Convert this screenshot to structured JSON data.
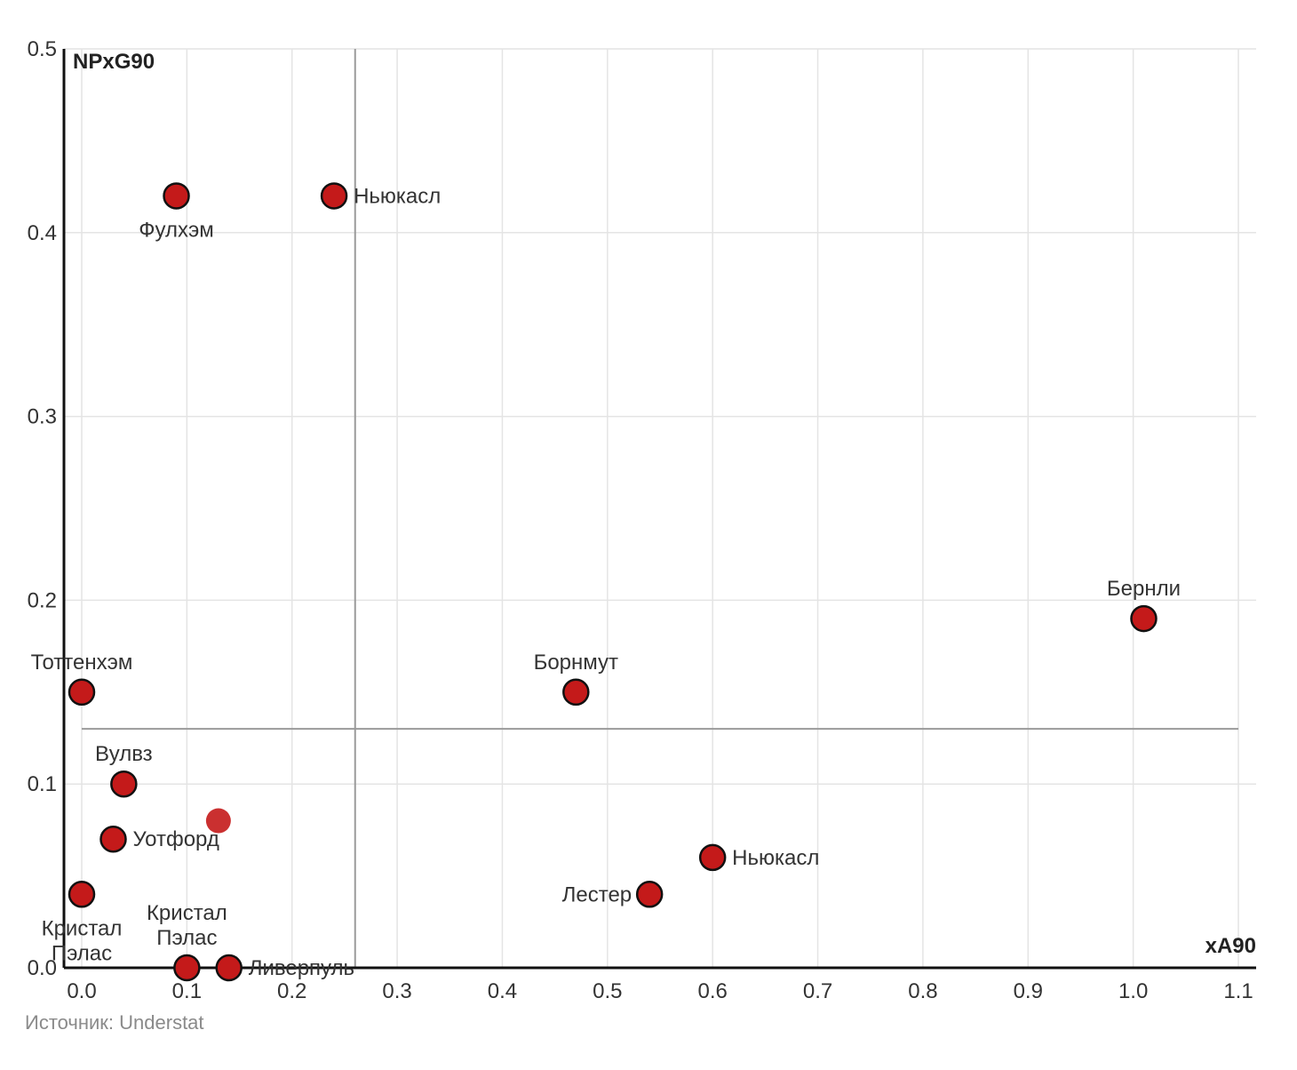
{
  "chart_data": {
    "type": "scatter",
    "xlabel": "xA90",
    "ylabel": "NPxG90",
    "xlim": [
      -0.02,
      1.12
    ],
    "ylim": [
      0,
      0.5
    ],
    "x_ticks": [
      "0.0",
      "0.1",
      "0.2",
      "0.3",
      "0.4",
      "0.5",
      "0.6",
      "0.7",
      "0.8",
      "0.9",
      "1.0",
      "1.1"
    ],
    "y_ticks": [
      "0.0",
      "0.1",
      "0.2",
      "0.3",
      "0.4",
      "0.5"
    ],
    "grid": true,
    "reference_lines": {
      "x": 0.26,
      "y": 0.13
    },
    "point_color": "#c41a1a",
    "points": [
      {
        "label": "Фулхэм",
        "x": 0.09,
        "y": 0.42,
        "label_pos": "below"
      },
      {
        "label": "Ньюкасл",
        "x": 0.24,
        "y": 0.42,
        "label_pos": "right"
      },
      {
        "label": "Бернли",
        "x": 1.01,
        "y": 0.19,
        "label_pos": "above"
      },
      {
        "label": "Тоттенхэм",
        "x": 0.0,
        "y": 0.15,
        "label_pos": "above"
      },
      {
        "label": "Борнмут",
        "x": 0.47,
        "y": 0.15,
        "label_pos": "above"
      },
      {
        "label": "Вулвз",
        "x": 0.04,
        "y": 0.1,
        "label_pos": "above"
      },
      {
        "label": "",
        "x": 0.13,
        "y": 0.08,
        "label_pos": "none",
        "faded": true
      },
      {
        "label": "Уотфорд",
        "x": 0.03,
        "y": 0.07,
        "label_pos": "right"
      },
      {
        "label": "Ньюкасл",
        "x": 0.6,
        "y": 0.06,
        "label_pos": "right"
      },
      {
        "label": "Лестер",
        "x": 0.54,
        "y": 0.04,
        "label_pos": "left"
      },
      {
        "label": "Кристал Пэлас",
        "x": 0.0,
        "y": 0.04,
        "label_pos": "below"
      },
      {
        "label": "Кристал Пэлас",
        "x": 0.1,
        "y": 0.0,
        "label_pos": "above"
      },
      {
        "label": "Ливерпуль",
        "x": 0.14,
        "y": 0.0,
        "label_pos": "right"
      }
    ]
  },
  "source": "Источник: Understat"
}
